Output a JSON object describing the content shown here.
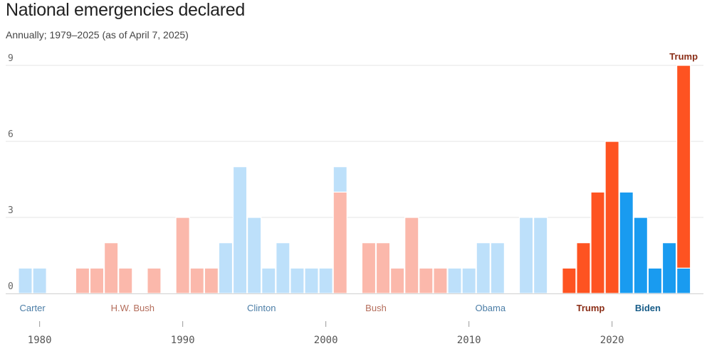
{
  "title": "National emergencies declared",
  "subtitle": "Annually; 1979–2025 (as of April 7, 2025)",
  "colors": {
    "dem_light": "#bde0fa",
    "rep_light": "#fbb8ab",
    "dem_dark": "#199bf0",
    "rep_dark": "#fe5321",
    "dem_label": "#4b7da6",
    "rep_label": "#b46d5b",
    "rep_label_dark": "#8a2d16",
    "dem_label_dark": "#175c88"
  },
  "chart_data": {
    "type": "bar",
    "stacked": true,
    "title": "National emergencies declared",
    "subtitle": "Annually; 1979–2025 (as of April 7, 2025)",
    "xlabel": "",
    "ylabel": "",
    "ylim": [
      0,
      9
    ],
    "yticks": [
      "0",
      "3",
      "6",
      "9"
    ],
    "xticks": [
      {
        "year": 1980,
        "label": "1980"
      },
      {
        "year": 1990,
        "label": "1990"
      },
      {
        "year": 2000,
        "label": "2000"
      },
      {
        "year": 2010,
        "label": "2010"
      },
      {
        "year": 2020,
        "label": "2020"
      }
    ],
    "grid": true,
    "presidents": [
      {
        "label": "Carter",
        "year": 1979.5,
        "style": "dem_light"
      },
      {
        "label": "H.W. Bush",
        "year": 1986.5,
        "style": "rep_light"
      },
      {
        "label": "Clinton",
        "year": 1995.5,
        "style": "dem_light"
      },
      {
        "label": "Bush",
        "year": 2003.5,
        "style": "rep_light"
      },
      {
        "label": "Obama",
        "year": 2011.5,
        "style": "dem_light"
      },
      {
        "label": "Trump",
        "year": 2018.5,
        "style": "rep_dark"
      },
      {
        "label": "Biden",
        "year": 2022.5,
        "style": "dem_dark"
      },
      {
        "label": "Trump",
        "year": 2025,
        "style": "rep_dark",
        "top": true
      }
    ],
    "bars": [
      {
        "year": 1979,
        "segments": [
          {
            "value": 1,
            "style": "dem_light"
          }
        ]
      },
      {
        "year": 1980,
        "segments": [
          {
            "value": 1,
            "style": "dem_light"
          }
        ]
      },
      {
        "year": 1981,
        "segments": []
      },
      {
        "year": 1982,
        "segments": []
      },
      {
        "year": 1983,
        "segments": [
          {
            "value": 1,
            "style": "rep_light"
          }
        ]
      },
      {
        "year": 1984,
        "segments": [
          {
            "value": 1,
            "style": "rep_light"
          }
        ]
      },
      {
        "year": 1985,
        "segments": [
          {
            "value": 2,
            "style": "rep_light"
          }
        ]
      },
      {
        "year": 1986,
        "segments": [
          {
            "value": 1,
            "style": "rep_light"
          }
        ]
      },
      {
        "year": 1987,
        "segments": []
      },
      {
        "year": 1988,
        "segments": [
          {
            "value": 1,
            "style": "rep_light"
          }
        ]
      },
      {
        "year": 1989,
        "segments": []
      },
      {
        "year": 1990,
        "segments": [
          {
            "value": 3,
            "style": "rep_light"
          }
        ]
      },
      {
        "year": 1991,
        "segments": [
          {
            "value": 1,
            "style": "rep_light"
          }
        ]
      },
      {
        "year": 1992,
        "segments": [
          {
            "value": 1,
            "style": "rep_light"
          }
        ]
      },
      {
        "year": 1993,
        "segments": [
          {
            "value": 2,
            "style": "dem_light"
          }
        ]
      },
      {
        "year": 1994,
        "segments": [
          {
            "value": 5,
            "style": "dem_light"
          }
        ]
      },
      {
        "year": 1995,
        "segments": [
          {
            "value": 3,
            "style": "dem_light"
          }
        ]
      },
      {
        "year": 1996,
        "segments": [
          {
            "value": 1,
            "style": "dem_light"
          }
        ]
      },
      {
        "year": 1997,
        "segments": [
          {
            "value": 2,
            "style": "dem_light"
          }
        ]
      },
      {
        "year": 1998,
        "segments": [
          {
            "value": 1,
            "style": "dem_light"
          }
        ]
      },
      {
        "year": 1999,
        "segments": [
          {
            "value": 1,
            "style": "dem_light"
          }
        ]
      },
      {
        "year": 2000,
        "segments": [
          {
            "value": 1,
            "style": "dem_light"
          }
        ]
      },
      {
        "year": 2001,
        "segments": [
          {
            "value": 4,
            "style": "rep_light"
          },
          {
            "value": 1,
            "style": "dem_light"
          }
        ]
      },
      {
        "year": 2002,
        "segments": []
      },
      {
        "year": 2003,
        "segments": [
          {
            "value": 2,
            "style": "rep_light"
          }
        ]
      },
      {
        "year": 2004,
        "segments": [
          {
            "value": 2,
            "style": "rep_light"
          }
        ]
      },
      {
        "year": 2005,
        "segments": [
          {
            "value": 1,
            "style": "rep_light"
          }
        ]
      },
      {
        "year": 2006,
        "segments": [
          {
            "value": 3,
            "style": "rep_light"
          }
        ]
      },
      {
        "year": 2007,
        "segments": [
          {
            "value": 1,
            "style": "rep_light"
          }
        ]
      },
      {
        "year": 2008,
        "segments": [
          {
            "value": 1,
            "style": "rep_light"
          }
        ]
      },
      {
        "year": 2009,
        "segments": [
          {
            "value": 1,
            "style": "dem_light"
          }
        ]
      },
      {
        "year": 2010,
        "segments": [
          {
            "value": 1,
            "style": "dem_light"
          }
        ]
      },
      {
        "year": 2011,
        "segments": [
          {
            "value": 2,
            "style": "dem_light"
          }
        ]
      },
      {
        "year": 2012,
        "segments": [
          {
            "value": 2,
            "style": "dem_light"
          }
        ]
      },
      {
        "year": 2013,
        "segments": []
      },
      {
        "year": 2014,
        "segments": [
          {
            "value": 3,
            "style": "dem_light"
          }
        ]
      },
      {
        "year": 2015,
        "segments": [
          {
            "value": 3,
            "style": "dem_light"
          }
        ]
      },
      {
        "year": 2016,
        "segments": []
      },
      {
        "year": 2017,
        "segments": [
          {
            "value": 1,
            "style": "rep_dark"
          }
        ]
      },
      {
        "year": 2018,
        "segments": [
          {
            "value": 2,
            "style": "rep_dark"
          }
        ]
      },
      {
        "year": 2019,
        "segments": [
          {
            "value": 4,
            "style": "rep_dark"
          }
        ]
      },
      {
        "year": 2020,
        "segments": [
          {
            "value": 6,
            "style": "rep_dark"
          }
        ]
      },
      {
        "year": 2021,
        "segments": [
          {
            "value": 4,
            "style": "dem_dark"
          }
        ]
      },
      {
        "year": 2022,
        "segments": [
          {
            "value": 3,
            "style": "dem_dark"
          }
        ]
      },
      {
        "year": 2023,
        "segments": [
          {
            "value": 1,
            "style": "dem_dark"
          }
        ]
      },
      {
        "year": 2024,
        "segments": [
          {
            "value": 2,
            "style": "dem_dark"
          }
        ]
      },
      {
        "year": 2025,
        "segments": [
          {
            "value": 1,
            "style": "dem_dark"
          },
          {
            "value": 8,
            "style": "rep_dark"
          }
        ]
      }
    ]
  }
}
